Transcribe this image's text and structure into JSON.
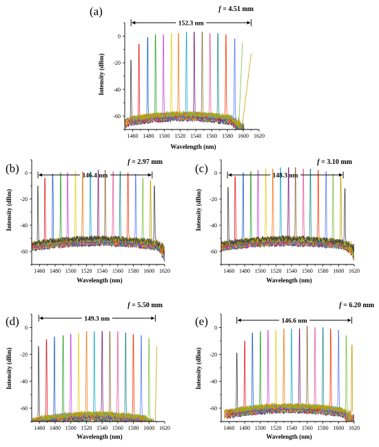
{
  "chart_data": [
    {
      "type": "line",
      "panel": "(a)",
      "focal_length": "f = 4.51 mm",
      "span_annotation": "152.3 nm",
      "span_nm": [
        1458,
        1610
      ],
      "xlabel": "Wavelength (nm)",
      "ylabel": "Intensity (dBm)",
      "xlim": [
        1450,
        1620
      ],
      "ylim": [
        -70,
        10
      ],
      "xticks": [
        1460,
        1480,
        1500,
        1520,
        1540,
        1560,
        1580,
        1600,
        1620
      ],
      "yticks": [
        0,
        -20,
        -40,
        -60
      ],
      "peaks_nm": [
        1458,
        1468,
        1479,
        1489,
        1499,
        1509,
        1518,
        1528,
        1538,
        1548,
        1558,
        1568,
        1578,
        1589,
        1599,
        1610
      ],
      "peaks_dbm": [
        -18,
        -6,
        -1,
        1,
        1,
        2,
        2,
        3,
        3,
        3,
        2,
        2,
        1,
        -2,
        -5,
        -13
      ],
      "noise_floor_dbm": -60,
      "noise_floor_nm": [
        1455,
        1595
      ]
    },
    {
      "type": "line",
      "panel": "(b)",
      "focal_length": "f = 2.97 mm",
      "span_annotation": "146.4 nm",
      "span_nm": [
        1458,
        1604
      ],
      "xlabel": "Wavelength (nm)",
      "ylabel": "Intensity (dBm)",
      "xlim": [
        1450,
        1620
      ],
      "ylim": [
        -70,
        10
      ],
      "xticks": [
        1460,
        1480,
        1500,
        1520,
        1540,
        1560,
        1580,
        1600,
        1620
      ],
      "yticks": [
        0,
        -20,
        -40,
        -60
      ],
      "peaks_nm": [
        1458,
        1467,
        1477,
        1487,
        1496,
        1506,
        1515,
        1525,
        1535,
        1544,
        1554,
        1563,
        1573,
        1583,
        1592,
        1602,
        1607
      ],
      "peaks_dbm": [
        -10,
        -4,
        -1,
        0,
        0,
        1,
        1,
        1,
        2,
        2,
        1,
        1,
        0,
        -1,
        -4,
        -6,
        -10
      ],
      "noise_floor_dbm": -52,
      "noise_floor_nm": [
        1450,
        1620
      ]
    },
    {
      "type": "line",
      "panel": "(c)",
      "focal_length": "f = 3.10 mm",
      "span_annotation": "148.3 nm",
      "span_nm": [
        1458,
        1606
      ],
      "xlabel": "Wavelength (nm)",
      "ylabel": "Intensity (dBm)",
      "xlim": [
        1450,
        1620
      ],
      "ylim": [
        -70,
        10
      ],
      "xticks": [
        1460,
        1480,
        1500,
        1520,
        1540,
        1560,
        1580,
        1600,
        1620
      ],
      "yticks": [
        0,
        -20,
        -40,
        -60
      ],
      "peaks_nm": [
        1459,
        1468,
        1478,
        1488,
        1497,
        1507,
        1516,
        1526,
        1536,
        1545,
        1555,
        1564,
        1574,
        1584,
        1593,
        1603,
        1608
      ],
      "peaks_dbm": [
        -11,
        -3,
        0,
        1,
        2,
        3,
        3,
        4,
        4,
        4,
        3,
        3,
        2,
        1,
        -1,
        -3,
        -12
      ],
      "noise_floor_dbm": -52,
      "noise_floor_nm": [
        1450,
        1620
      ]
    },
    {
      "type": "line",
      "panel": "(d)",
      "focal_length": "f = 5.50 mm",
      "span_annotation": "149.3 nm",
      "span_nm": [
        1459,
        1608
      ],
      "xlabel": "Wavelength (nm)",
      "ylabel": "Intensity (dBm)",
      "xlim": [
        1450,
        1620
      ],
      "ylim": [
        -70,
        10
      ],
      "xticks": [
        1460,
        1480,
        1500,
        1520,
        1540,
        1560,
        1580,
        1600,
        1620
      ],
      "yticks": [
        0,
        -20,
        -40,
        -60
      ],
      "peaks_nm": [
        1459,
        1469,
        1479,
        1490,
        1500,
        1510,
        1520,
        1530,
        1540,
        1550,
        1560,
        1570,
        1580,
        1590,
        1600,
        1610
      ],
      "peaks_dbm": [
        -14,
        -9,
        -7,
        -6,
        -5,
        -4,
        -3,
        -3,
        -3,
        -3,
        -3,
        -4,
        -5,
        -6,
        -8,
        -14
      ],
      "noise_floor_dbm": -66,
      "noise_floor_nm": [
        1455,
        1605
      ]
    },
    {
      "type": "line",
      "panel": "(e)",
      "focal_length": "f = 6.20 mm",
      "span_annotation": "146.6 nm",
      "span_nm": [
        1470,
        1617
      ],
      "xlabel": "Wavelength (nm)",
      "ylabel": "Intensity (dBm)",
      "xlim": [
        1450,
        1620
      ],
      "ylim": [
        -70,
        10
      ],
      "xticks": [
        1460,
        1480,
        1500,
        1520,
        1540,
        1560,
        1580,
        1600,
        1620
      ],
      "yticks": [
        0,
        -20,
        -40,
        -60
      ],
      "peaks_nm": [
        1470,
        1480,
        1490,
        1500,
        1510,
        1520,
        1530,
        1540,
        1550,
        1560,
        1570,
        1580,
        1590,
        1600,
        1610,
        1617
      ],
      "peaks_dbm": [
        -19,
        -10,
        -4,
        -3,
        -2,
        -2,
        -1,
        -1,
        -1,
        1,
        0,
        0,
        -1,
        -2,
        -6,
        -13
      ],
      "noise_floor_dbm": -60,
      "noise_floor_nm": [
        1460,
        1615
      ]
    }
  ],
  "palette": [
    "#404040",
    "#e8161d",
    "#1f5fd6",
    "#2ca02c",
    "#cc44dd",
    "#e8d024",
    "#f07c1a",
    "#18aacc",
    "#7a1f7a",
    "#8c6d3a",
    "#e85a9c",
    "#1a8a8a",
    "#ff3300",
    "#5577ff",
    "#7fbf3f",
    "#c0a000"
  ]
}
